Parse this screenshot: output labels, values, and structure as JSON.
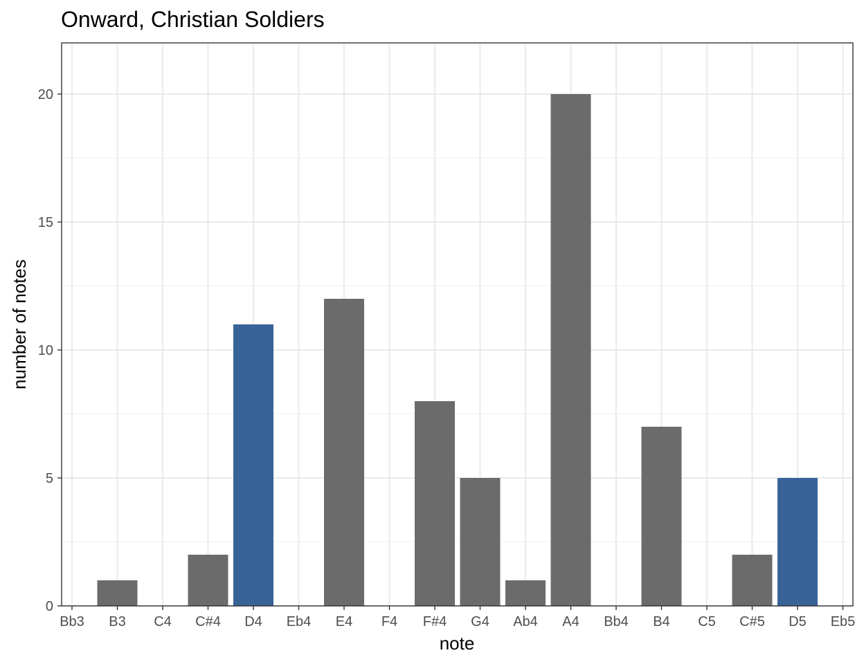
{
  "chart_data": {
    "type": "bar",
    "title": "Onward, Christian Soldiers",
    "xlabel": "note",
    "ylabel": "number of notes",
    "categories": [
      "Bb3",
      "B3",
      "C4",
      "C#4",
      "D4",
      "Eb4",
      "E4",
      "F4",
      "F#4",
      "G4",
      "Ab4",
      "A4",
      "Bb4",
      "B4",
      "C5",
      "C#5",
      "D5",
      "Eb5"
    ],
    "values": [
      0,
      1,
      0,
      2,
      11,
      0,
      12,
      0,
      8,
      5,
      1,
      20,
      0,
      7,
      0,
      2,
      5,
      0
    ],
    "highlighted": [
      "D4",
      "D5"
    ],
    "colors": {
      "default": "#6b6b6b",
      "highlight": "#386399"
    },
    "ylim": [
      0,
      22
    ],
    "yticks": [
      0,
      5,
      10,
      15,
      20
    ],
    "grid": true,
    "legend": "none"
  }
}
